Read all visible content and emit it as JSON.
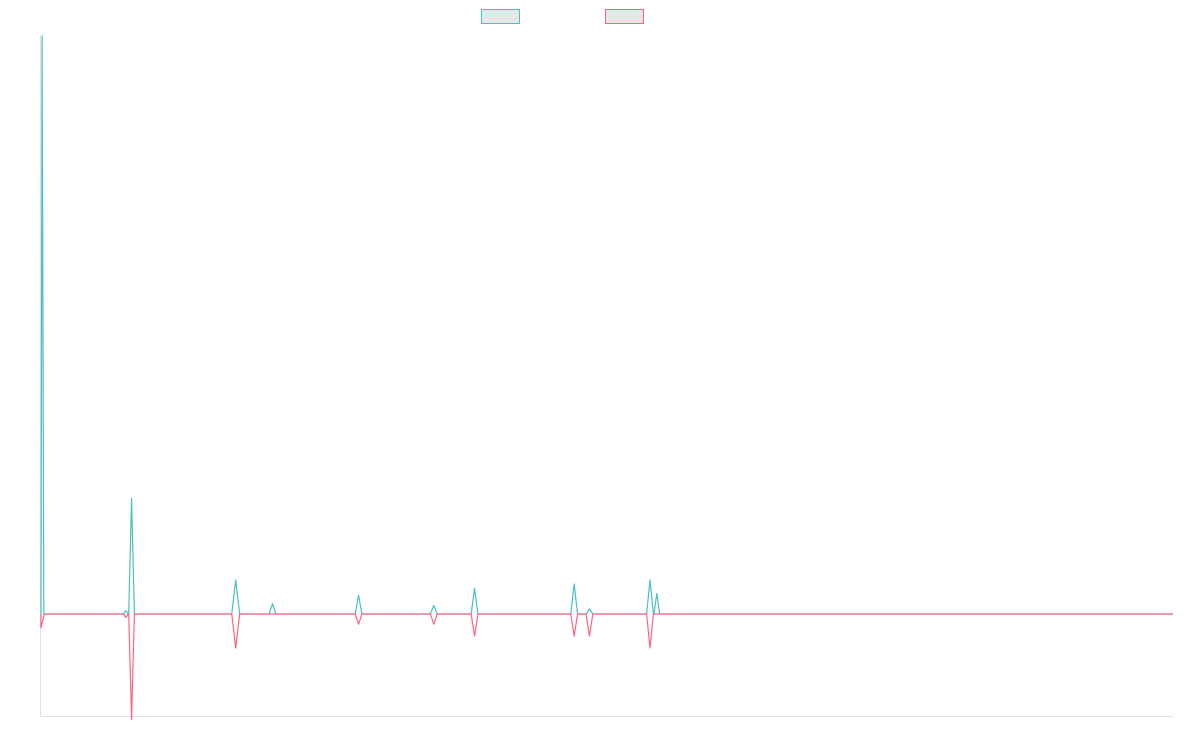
{
  "chart_data": {
    "type": "line",
    "title": "",
    "xlabel": "",
    "ylabel": "",
    "grid": false,
    "legend": {
      "position": "top-center",
      "style": "outlined-swatch"
    },
    "x_range": [
      0,
      200
    ],
    "y_range": [
      -0.3,
      1.7
    ],
    "baseline": 0,
    "series": [
      {
        "color": "#4bc0c0",
        "fill": "#e6e6e6",
        "peaks": [
          {
            "x": 0.2,
            "y": 1.7,
            "half_width": 0.3
          },
          {
            "x": 15.0,
            "y": 0.01,
            "half_width": 0.4
          },
          {
            "x": 16.0,
            "y": 0.34,
            "half_width": 0.5
          },
          {
            "x": 34.4,
            "y": 0.1,
            "half_width": 0.7
          },
          {
            "x": 40.9,
            "y": 0.03,
            "half_width": 0.6
          },
          {
            "x": 56.1,
            "y": 0.055,
            "half_width": 0.6
          },
          {
            "x": 69.4,
            "y": 0.025,
            "half_width": 0.6
          },
          {
            "x": 76.6,
            "y": 0.075,
            "half_width": 0.6
          },
          {
            "x": 94.2,
            "y": 0.088,
            "half_width": 0.6
          },
          {
            "x": 96.9,
            "y": 0.015,
            "half_width": 0.6
          },
          {
            "x": 107.6,
            "y": 0.1,
            "half_width": 0.6
          },
          {
            "x": 108.8,
            "y": 0.06,
            "half_width": 0.5
          }
        ]
      },
      {
        "color": "#ff6384",
        "fill": "#e6e6e6",
        "peaks": [
          {
            "x": 0.0,
            "y": -0.04,
            "half_width": 0.6
          },
          {
            "x": 15.0,
            "y": -0.01,
            "half_width": 0.4
          },
          {
            "x": 16.0,
            "y": -0.31,
            "half_width": 0.5
          },
          {
            "x": 34.4,
            "y": -0.1,
            "half_width": 0.7
          },
          {
            "x": 56.1,
            "y": -0.03,
            "half_width": 0.6
          },
          {
            "x": 69.4,
            "y": -0.03,
            "half_width": 0.6
          },
          {
            "x": 76.6,
            "y": -0.065,
            "half_width": 0.6
          },
          {
            "x": 94.2,
            "y": -0.065,
            "half_width": 0.6
          },
          {
            "x": 96.9,
            "y": -0.065,
            "half_width": 0.6
          },
          {
            "x": 107.6,
            "y": -0.1,
            "half_width": 0.6
          }
        ]
      }
    ]
  }
}
